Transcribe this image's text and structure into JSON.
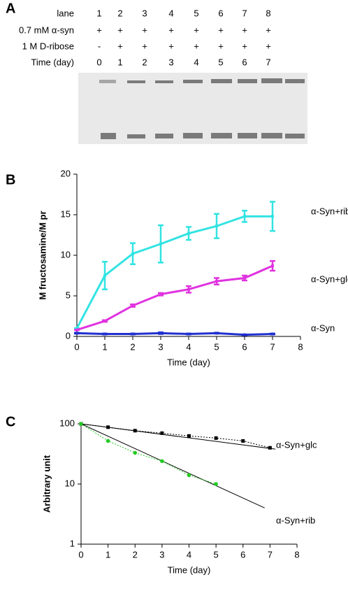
{
  "gel": {
    "panel_label": "A",
    "rows": [
      {
        "label": "lane",
        "cells": [
          "1",
          "2",
          "3",
          "4",
          "5",
          "6",
          "7",
          "8"
        ]
      },
      {
        "label": "0.7 mM α-syn",
        "cells": [
          "+",
          "+",
          "+",
          "+",
          "+",
          "+",
          "+",
          "+"
        ]
      },
      {
        "label": "1 M D-ribose",
        "cells": [
          "-",
          "+",
          "+",
          "+",
          "+",
          "+",
          "+",
          "+"
        ]
      },
      {
        "label": "Time (day)",
        "cells": [
          "0",
          "1",
          "2",
          "3",
          "4",
          "5",
          "6",
          "7"
        ]
      }
    ]
  },
  "chart_data": [
    {
      "type": "line",
      "panel_label": "B",
      "y_label": "M fructosamine/M pr",
      "x_label": "Time (day)",
      "x": [
        0,
        1,
        2,
        3,
        4,
        5,
        6,
        7
      ],
      "xlim": [
        0,
        8
      ],
      "xticks": [
        0,
        1,
        2,
        3,
        4,
        5,
        6,
        7,
        8
      ],
      "ylim": [
        0,
        20
      ],
      "yticks": [
        0,
        5,
        10,
        15,
        20
      ],
      "log_y": false,
      "series": [
        {
          "name": "α-Syn+rib",
          "color": "#33e3e3",
          "values": [
            1.0,
            7.5,
            10.2,
            11.4,
            12.7,
            13.6,
            14.8,
            14.8
          ],
          "errors": [
            0,
            1.7,
            1.3,
            2.3,
            0.8,
            1.5,
            0.7,
            1.8
          ]
        },
        {
          "name": "α-Syn+glc",
          "color": "#e033e0",
          "values": [
            0.8,
            1.9,
            3.8,
            5.2,
            5.8,
            6.8,
            7.2,
            8.7
          ],
          "errors": [
            0,
            0.1,
            0.15,
            0.15,
            0.4,
            0.4,
            0.3,
            0.6
          ]
        },
        {
          "name": "α-Syn",
          "color": "#2030d0",
          "values": [
            0.4,
            0.3,
            0.3,
            0.4,
            0.3,
            0.4,
            0.2,
            0.3
          ],
          "errors": [
            0.05,
            0.05,
            0.05,
            0.1,
            0.05,
            0.05,
            0.05,
            0.05
          ]
        }
      ]
    },
    {
      "type": "line",
      "panel_label": "C",
      "y_label": "Arbitrary unit",
      "x_label": "Time (day)",
      "xlim": [
        0,
        8
      ],
      "xticks": [
        0,
        1,
        2,
        3,
        4,
        5,
        6,
        7,
        8
      ],
      "ylim": [
        1,
        100
      ],
      "yticks": [
        1,
        10,
        100
      ],
      "log_y": true,
      "series": [
        {
          "name": "α-Syn+glc",
          "color": "#000000",
          "line_style": "dotted",
          "x": [
            0,
            1,
            2,
            3,
            4,
            5,
            6,
            7
          ],
          "values": [
            100,
            88,
            77,
            70,
            63,
            58,
            52,
            40
          ]
        },
        {
          "name": "α-Syn+rib",
          "color": "#22cc22",
          "line_style": "dotted",
          "x": [
            0,
            1,
            2,
            3,
            4,
            5
          ],
          "values": [
            100,
            52,
            33,
            24,
            14,
            10
          ]
        }
      ],
      "fits": [
        {
          "color": "#000000",
          "x": [
            0,
            7.2
          ],
          "values": [
            100,
            38
          ]
        },
        {
          "color": "#000000",
          "x": [
            0,
            6.8
          ],
          "values": [
            100,
            4
          ]
        }
      ]
    }
  ]
}
